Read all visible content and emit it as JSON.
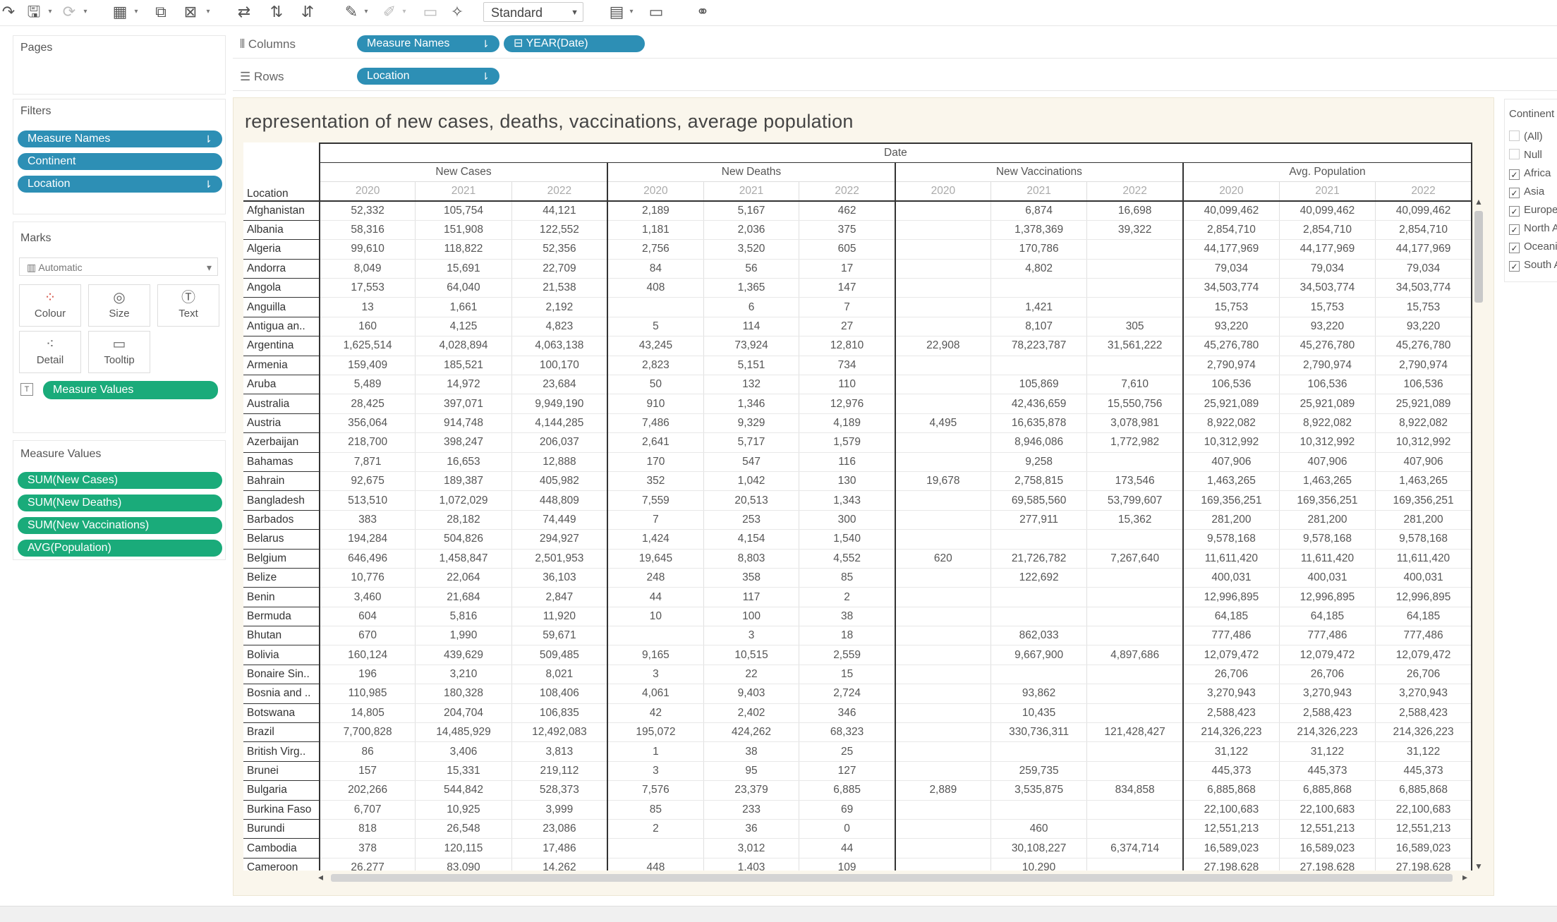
{
  "toolbar": {
    "fit_select": "Standard",
    "icons": [
      "redo-icon",
      "save-icon",
      "refresh-icon",
      "new-worksheet-icon",
      "duplicate-icon",
      "clear-icon",
      "swap-icon",
      "sort-ascending-icon",
      "sort-descending-icon",
      "highlight-icon",
      "labels-icon",
      "fixed-axes-icon",
      "pin-icon",
      "show-cards-icon",
      "presentation-icon",
      "share-icon"
    ]
  },
  "shelves": {
    "pages_label": "Pages",
    "columns_label": "Columns",
    "rows_label": "Rows",
    "columns_pills": [
      "Measure Names",
      "YEAR(Date)"
    ],
    "rows_pills": [
      "Location"
    ]
  },
  "filters": {
    "title": "Filters",
    "items": [
      "Measure Names",
      "Continent",
      "Location"
    ]
  },
  "marks": {
    "title": "Marks",
    "type": "Automatic",
    "buttons": [
      "Colour",
      "Size",
      "Text",
      "Detail",
      "Tooltip"
    ],
    "field": "Measure Values"
  },
  "measure_values": {
    "title": "Measure Values",
    "items": [
      "SUM(New Cases)",
      "SUM(New Deaths)",
      "SUM(New Vaccinations)",
      "AVG(Population)"
    ]
  },
  "continent_filter": {
    "title": "Continent",
    "items": [
      {
        "label": "(All)",
        "checked": false
      },
      {
        "label": "Null",
        "checked": false
      },
      {
        "label": "Africa",
        "checked": true
      },
      {
        "label": "Asia",
        "checked": true
      },
      {
        "label": "Europe",
        "checked": true
      },
      {
        "label": "North America",
        "checked": true
      },
      {
        "label": "Oceania",
        "checked": true
      },
      {
        "label": "South America",
        "checked": true
      }
    ]
  },
  "view": {
    "title": "representation of new cases, deaths, vaccinations, average population",
    "date_header": "Date",
    "location_header": "Location",
    "measures": [
      "New Cases",
      "New Deaths",
      "New Vaccinations",
      "Avg. Population"
    ],
    "years": [
      "2020",
      "2021",
      "2022"
    ],
    "rows": [
      {
        "loc": "Afghanistan",
        "v": [
          "52,332",
          "105,754",
          "44,121",
          "2,189",
          "5,167",
          "462",
          "",
          "6,874",
          "16,698",
          "40,099,462",
          "40,099,462",
          "40,099,462"
        ]
      },
      {
        "loc": "Albania",
        "v": [
          "58,316",
          "151,908",
          "122,552",
          "1,181",
          "2,036",
          "375",
          "",
          "1,378,369",
          "39,322",
          "2,854,710",
          "2,854,710",
          "2,854,710"
        ]
      },
      {
        "loc": "Algeria",
        "v": [
          "99,610",
          "118,822",
          "52,356",
          "2,756",
          "3,520",
          "605",
          "",
          "170,786",
          "",
          "44,177,969",
          "44,177,969",
          "44,177,969"
        ]
      },
      {
        "loc": "Andorra",
        "v": [
          "8,049",
          "15,691",
          "22,709",
          "84",
          "56",
          "17",
          "",
          "4,802",
          "",
          "79,034",
          "79,034",
          "79,034"
        ]
      },
      {
        "loc": "Angola",
        "v": [
          "17,553",
          "64,040",
          "21,538",
          "408",
          "1,365",
          "147",
          "",
          "",
          "",
          "34,503,774",
          "34,503,774",
          "34,503,774"
        ]
      },
      {
        "loc": "Anguilla",
        "v": [
          "13",
          "1,661",
          "2,192",
          "",
          "6",
          "7",
          "",
          "1,421",
          "",
          "15,753",
          "15,753",
          "15,753"
        ]
      },
      {
        "loc": "Antigua an..",
        "v": [
          "160",
          "4,125",
          "4,823",
          "5",
          "114",
          "27",
          "",
          "8,107",
          "305",
          "93,220",
          "93,220",
          "93,220"
        ]
      },
      {
        "loc": "Argentina",
        "v": [
          "1,625,514",
          "4,028,894",
          "4,063,138",
          "43,245",
          "73,924",
          "12,810",
          "22,908",
          "78,223,787",
          "31,561,222",
          "45,276,780",
          "45,276,780",
          "45,276,780"
        ]
      },
      {
        "loc": "Armenia",
        "v": [
          "159,409",
          "185,521",
          "100,170",
          "2,823",
          "5,151",
          "734",
          "",
          "",
          "",
          "2,790,974",
          "2,790,974",
          "2,790,974"
        ]
      },
      {
        "loc": "Aruba",
        "v": [
          "5,489",
          "14,972",
          "23,684",
          "50",
          "132",
          "110",
          "",
          "105,869",
          "7,610",
          "106,536",
          "106,536",
          "106,536"
        ]
      },
      {
        "loc": "Australia",
        "v": [
          "28,425",
          "397,071",
          "9,949,190",
          "910",
          "1,346",
          "12,976",
          "",
          "42,436,659",
          "15,550,756",
          "25,921,089",
          "25,921,089",
          "25,921,089"
        ]
      },
      {
        "loc": "Austria",
        "v": [
          "356,064",
          "914,748",
          "4,144,285",
          "7,486",
          "9,329",
          "4,189",
          "4,495",
          "16,635,878",
          "3,078,981",
          "8,922,082",
          "8,922,082",
          "8,922,082"
        ]
      },
      {
        "loc": "Azerbaijan",
        "v": [
          "218,700",
          "398,247",
          "206,037",
          "2,641",
          "5,717",
          "1,579",
          "",
          "8,946,086",
          "1,772,982",
          "10,312,992",
          "10,312,992",
          "10,312,992"
        ]
      },
      {
        "loc": "Bahamas",
        "v": [
          "7,871",
          "16,653",
          "12,888",
          "170",
          "547",
          "116",
          "",
          "9,258",
          "",
          "407,906",
          "407,906",
          "407,906"
        ]
      },
      {
        "loc": "Bahrain",
        "v": [
          "92,675",
          "189,387",
          "405,982",
          "352",
          "1,042",
          "130",
          "19,678",
          "2,758,815",
          "173,546",
          "1,463,265",
          "1,463,265",
          "1,463,265"
        ]
      },
      {
        "loc": "Bangladesh",
        "v": [
          "513,510",
          "1,072,029",
          "448,809",
          "7,559",
          "20,513",
          "1,343",
          "",
          "69,585,560",
          "53,799,607",
          "169,356,251",
          "169,356,251",
          "169,356,251"
        ]
      },
      {
        "loc": "Barbados",
        "v": [
          "383",
          "28,182",
          "74,449",
          "7",
          "253",
          "300",
          "",
          "277,911",
          "15,362",
          "281,200",
          "281,200",
          "281,200"
        ]
      },
      {
        "loc": "Belarus",
        "v": [
          "194,284",
          "504,826",
          "294,927",
          "1,424",
          "4,154",
          "1,540",
          "",
          "",
          "",
          "9,578,168",
          "9,578,168",
          "9,578,168"
        ]
      },
      {
        "loc": "Belgium",
        "v": [
          "646,496",
          "1,458,847",
          "2,501,953",
          "19,645",
          "8,803",
          "4,552",
          "620",
          "21,726,782",
          "7,267,640",
          "11,611,420",
          "11,611,420",
          "11,611,420"
        ]
      },
      {
        "loc": "Belize",
        "v": [
          "10,776",
          "22,064",
          "36,103",
          "248",
          "358",
          "85",
          "",
          "122,692",
          "",
          "400,031",
          "400,031",
          "400,031"
        ]
      },
      {
        "loc": "Benin",
        "v": [
          "3,460",
          "21,684",
          "2,847",
          "44",
          "117",
          "2",
          "",
          "",
          "",
          "12,996,895",
          "12,996,895",
          "12,996,895"
        ]
      },
      {
        "loc": "Bermuda",
        "v": [
          "604",
          "5,816",
          "11,920",
          "10",
          "100",
          "38",
          "",
          "",
          "",
          "64,185",
          "64,185",
          "64,185"
        ]
      },
      {
        "loc": "Bhutan",
        "v": [
          "670",
          "1,990",
          "59,671",
          "",
          "3",
          "18",
          "",
          "862,033",
          "",
          "777,486",
          "777,486",
          "777,486"
        ]
      },
      {
        "loc": "Bolivia",
        "v": [
          "160,124",
          "439,629",
          "509,485",
          "9,165",
          "10,515",
          "2,559",
          "",
          "9,667,900",
          "4,897,686",
          "12,079,472",
          "12,079,472",
          "12,079,472"
        ]
      },
      {
        "loc": "Bonaire Sin..",
        "v": [
          "196",
          "3,210",
          "8,021",
          "3",
          "22",
          "15",
          "",
          "",
          "",
          "26,706",
          "26,706",
          "26,706"
        ]
      },
      {
        "loc": "Bosnia and ..",
        "v": [
          "110,985",
          "180,328",
          "108,406",
          "4,061",
          "9,403",
          "2,724",
          "",
          "93,862",
          "",
          "3,270,943",
          "3,270,943",
          "3,270,943"
        ]
      },
      {
        "loc": "Botswana",
        "v": [
          "14,805",
          "204,704",
          "106,835",
          "42",
          "2,402",
          "346",
          "",
          "10,435",
          "",
          "2,588,423",
          "2,588,423",
          "2,588,423"
        ]
      },
      {
        "loc": "Brazil",
        "v": [
          "7,700,828",
          "14,485,929",
          "12,492,083",
          "195,072",
          "424,262",
          "68,323",
          "",
          "330,736,311",
          "121,428,427",
          "214,326,223",
          "214,326,223",
          "214,326,223"
        ]
      },
      {
        "loc": "British Virg..",
        "v": [
          "86",
          "3,406",
          "3,813",
          "1",
          "38",
          "25",
          "",
          "",
          "",
          "31,122",
          "31,122",
          "31,122"
        ]
      },
      {
        "loc": "Brunei",
        "v": [
          "157",
          "15,331",
          "219,112",
          "3",
          "95",
          "127",
          "",
          "259,735",
          "",
          "445,373",
          "445,373",
          "445,373"
        ]
      },
      {
        "loc": "Bulgaria",
        "v": [
          "202,266",
          "544,842",
          "528,373",
          "7,576",
          "23,379",
          "6,885",
          "2,889",
          "3,535,875",
          "834,858",
          "6,885,868",
          "6,885,868",
          "6,885,868"
        ]
      },
      {
        "loc": "Burkina Faso",
        "v": [
          "6,707",
          "10,925",
          "3,999",
          "85",
          "233",
          "69",
          "",
          "",
          "",
          "22,100,683",
          "22,100,683",
          "22,100,683"
        ]
      },
      {
        "loc": "Burundi",
        "v": [
          "818",
          "26,548",
          "23,086",
          "2",
          "36",
          "0",
          "",
          "460",
          "",
          "12,551,213",
          "12,551,213",
          "12,551,213"
        ]
      },
      {
        "loc": "Cambodia",
        "v": [
          "378",
          "120,115",
          "17,486",
          "",
          "3,012",
          "44",
          "",
          "30,108,227",
          "6,374,714",
          "16,589,023",
          "16,589,023",
          "16,589,023"
        ]
      },
      {
        "loc": "Cameroon",
        "v": [
          "26,277",
          "83,090",
          "14,262",
          "448",
          "1,403",
          "109",
          "",
          "10,290",
          "",
          "27,198,628",
          "27,198,628",
          "27,198,628"
        ]
      }
    ]
  }
}
